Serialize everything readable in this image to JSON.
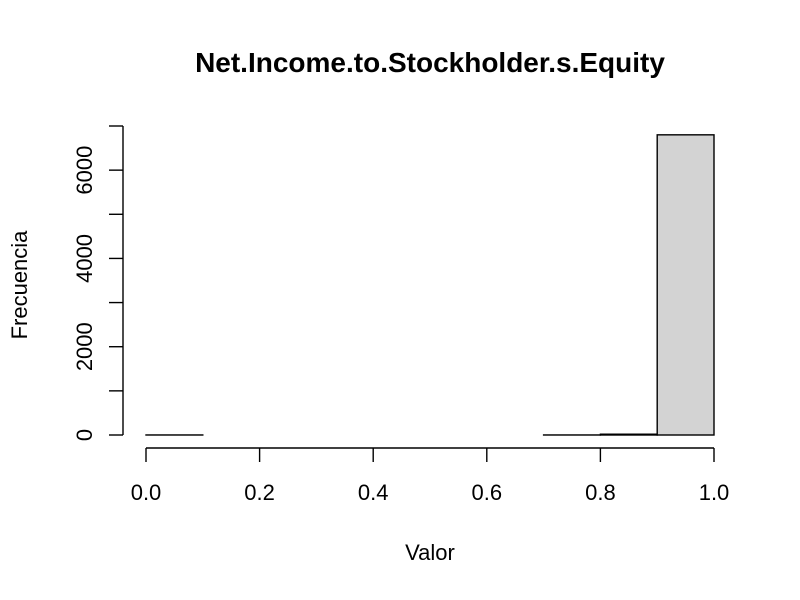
{
  "chart_data": {
    "type": "bar",
    "title": "Net.Income.to.Stockholder.s.Equity",
    "xlabel": "Valor",
    "ylabel": "Frecuencia",
    "bin_edges": [
      0.0,
      0.1,
      0.2,
      0.3,
      0.4,
      0.5,
      0.6,
      0.7,
      0.8,
      0.9,
      1.0
    ],
    "values": [
      1,
      0,
      0,
      0,
      0,
      0,
      0,
      1,
      18,
      6800
    ],
    "xlim": [
      0.0,
      1.0
    ],
    "ylim": [
      0,
      7000
    ],
    "x_ticks": [
      0.0,
      0.2,
      0.4,
      0.6,
      0.8,
      1.0
    ],
    "x_tick_labels": [
      "0.0",
      "0.2",
      "0.4",
      "0.6",
      "0.8",
      "1.0"
    ],
    "y_ticks": [
      0,
      1000,
      2000,
      3000,
      4000,
      5000,
      6000,
      7000
    ],
    "y_tick_labels": [
      "0",
      "2000",
      "4000",
      "6000"
    ],
    "y_tick_label_values": [
      0,
      2000,
      4000,
      6000
    ],
    "colors": {
      "bar_fill": "#d3d3d3",
      "bar_stroke": "#000000"
    },
    "grid": false,
    "legend": "none"
  }
}
